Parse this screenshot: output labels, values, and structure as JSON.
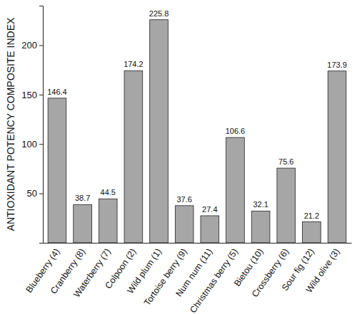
{
  "chart_data": {
    "type": "bar",
    "y_label": "ANTIOXIDANT POTENCY COMPOSITE INDEX",
    "categories": [
      "Blueberry (4)",
      "Cranberry (8)",
      "Waterberry (7)",
      "Colpoon (2)",
      "Wild plum (1)",
      "Tortoise berry (9)",
      "Num num (11)",
      "Christmas berry (5)",
      "Bietou (10)",
      "Crossberry (6)",
      "Sour fig (12)",
      "Wild olive (3)"
    ],
    "values": [
      146.4,
      38.7,
      44.5,
      174.2,
      225.8,
      37.6,
      27.4,
      106.6,
      32.1,
      75.6,
      21.2,
      173.9
    ],
    "color": "#a6a6a6",
    "ylim": [
      0,
      240
    ],
    "yticks": [
      50,
      100,
      150,
      200
    ],
    "grid": false,
    "data_labels": true
  }
}
